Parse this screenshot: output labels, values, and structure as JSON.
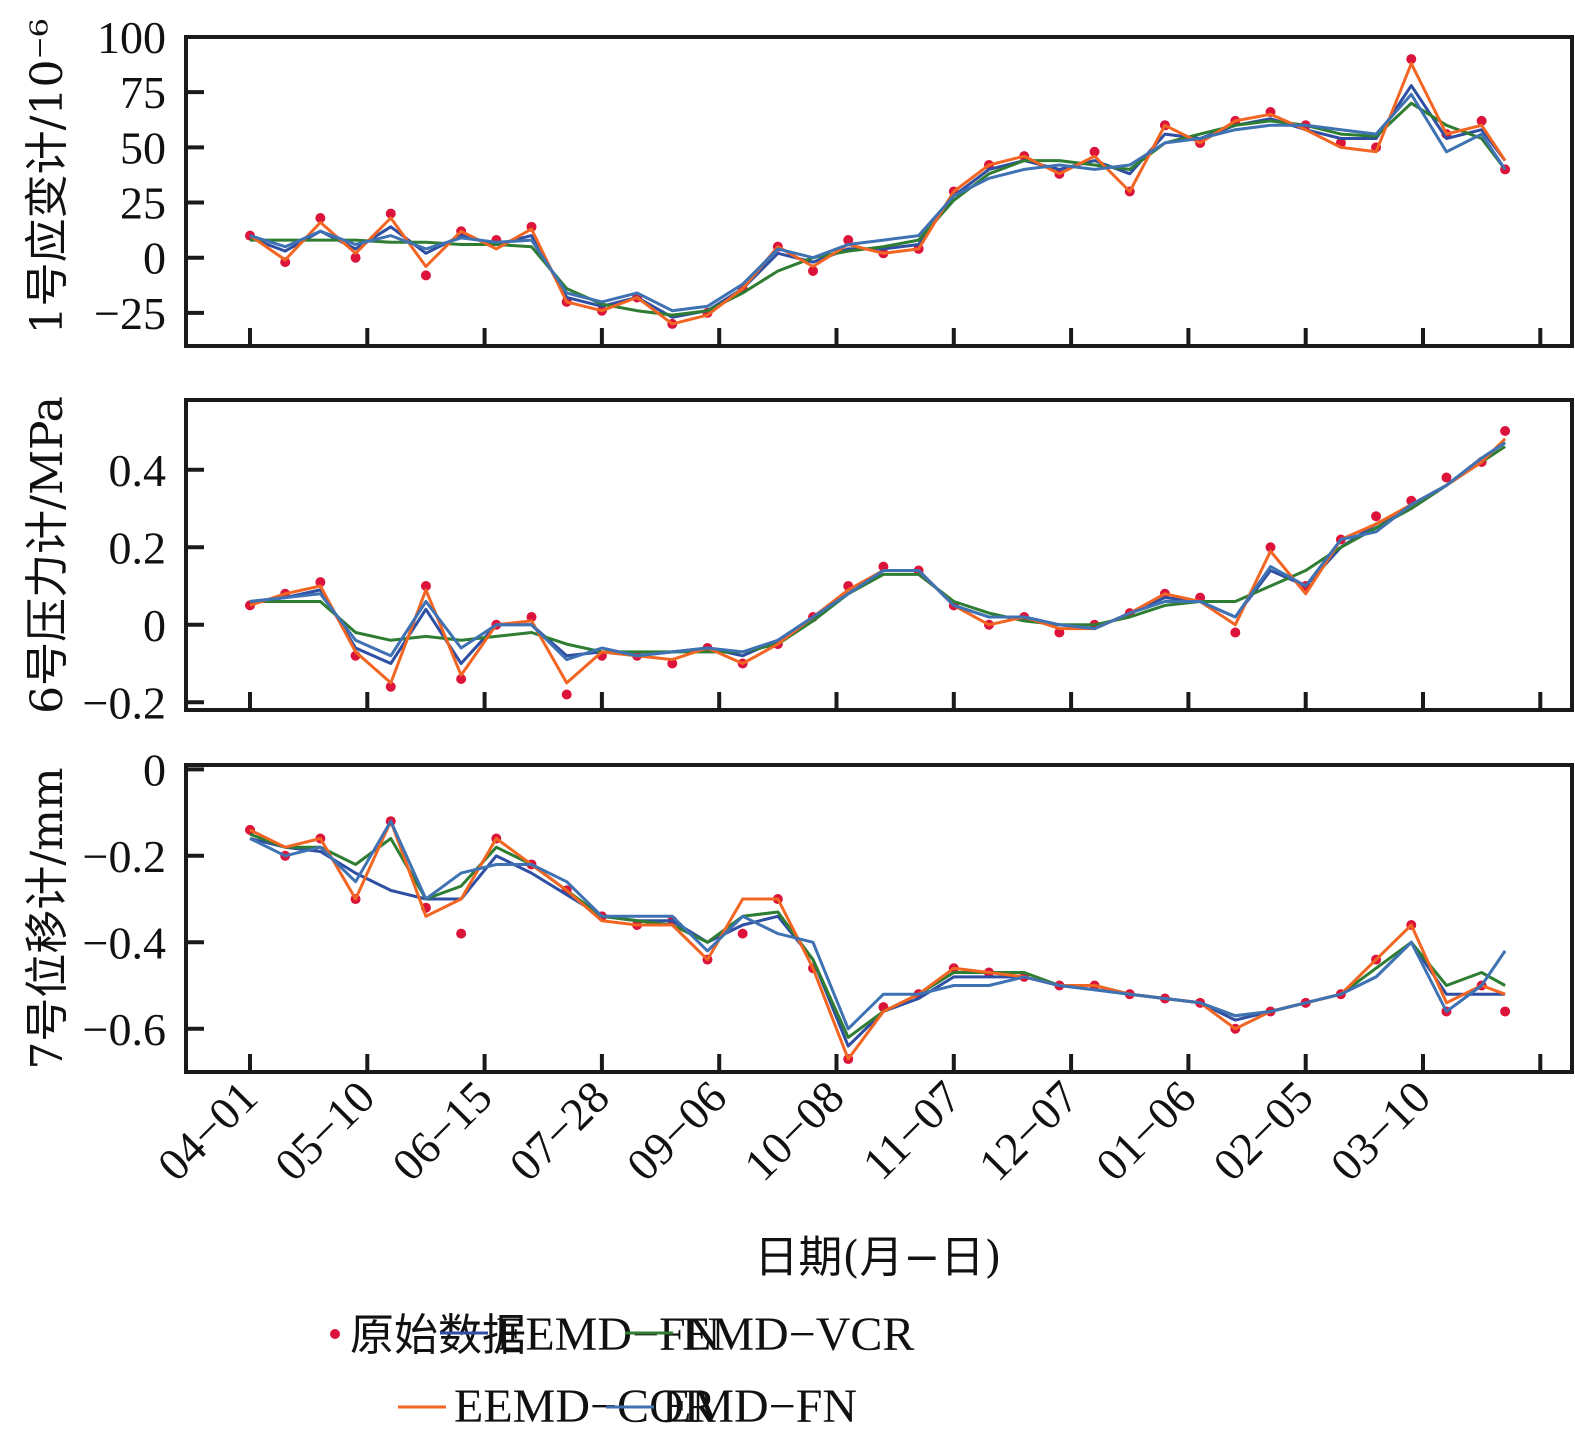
{
  "chart_data": {
    "type": "line",
    "xlabel": "日期(月−日)",
    "x_tick_labels": [
      "04−01",
      "05−10",
      "06−15",
      "07−28",
      "09−06",
      "10−08",
      "11−07",
      "12−07",
      "01−06",
      "02−05",
      "03−10"
    ],
    "x_range_tick_units": [
      -0.55,
      11.3
    ],
    "legend": {
      "placement": "bottom",
      "entries": [
        {
          "name": "原始数据",
          "kind": "marker",
          "color": "#dc143c"
        },
        {
          "name": "EEMD−FN",
          "kind": "line",
          "color": "#2e4fa3"
        },
        {
          "name": "EMD−VCR",
          "kind": "line",
          "color": "#2e7d32"
        },
        {
          "name": "EEMD−COR",
          "kind": "line",
          "color": "#f26522"
        },
        {
          "name": "EMD−FN",
          "kind": "line",
          "color": "#3f72b3"
        }
      ]
    },
    "panels": [
      {
        "ylabel": "1号应变计/10⁻⁶",
        "ylim": [
          -40,
          100
        ],
        "yticks": [
          -25,
          0,
          25,
          50,
          75,
          100
        ],
        "ytick_labels": [
          "−25",
          "0",
          "25",
          "50",
          "75",
          "100"
        ],
        "x": [
          0,
          0.3,
          0.6,
          0.9,
          1.2,
          1.5,
          1.8,
          2.1,
          2.4,
          2.7,
          3.0,
          3.3,
          3.6,
          3.9,
          4.2,
          4.5,
          4.8,
          5.1,
          5.4,
          5.7,
          6.0,
          6.3,
          6.6,
          6.9,
          7.2,
          7.5,
          7.8,
          8.1,
          8.4,
          8.7,
          9.0,
          9.3,
          9.6,
          9.9,
          10.2,
          10.5,
          10.7
        ],
        "raw": [
          10,
          -2,
          18,
          0,
          20,
          -8,
          12,
          8,
          14,
          -20,
          -24,
          -18,
          -30,
          -25,
          -14,
          5,
          -6,
          8,
          2,
          4,
          30,
          42,
          46,
          38,
          48,
          30,
          60,
          52,
          62,
          66,
          60,
          52,
          50,
          90,
          56,
          62,
          40
        ],
        "series": [
          {
            "name": "EEMD−FN",
            "values": [
              9,
              3,
              12,
              4,
              14,
              2,
              10,
              6,
              10,
              -18,
              -22,
              -18,
              -27,
              -24,
              -14,
              2,
              -2,
              4,
              4,
              6,
              28,
              40,
              44,
              40,
              44,
              38,
              56,
              54,
              60,
              63,
              58,
              54,
              54,
              78,
              54,
              58,
              44
            ]
          },
          {
            "name": "EMD−VCR",
            "values": [
              8,
              8,
              8,
              8,
              7,
              7,
              6,
              6,
              5,
              -14,
              -21,
              -24,
              -26,
              -24,
              -16,
              -6,
              0,
              3,
              5,
              8,
              26,
              38,
              44,
              44,
              42,
              40,
              52,
              56,
              60,
              62,
              60,
              56,
              55,
              70,
              60,
              54,
              40
            ]
          },
          {
            "name": "EEMD−COR",
            "values": [
              10,
              -1,
              16,
              2,
              18,
              -4,
              12,
              4,
              13,
              -20,
              -24,
              -18,
              -30,
              -26,
              -14,
              5,
              -4,
              6,
              2,
              4,
              30,
              42,
              46,
              38,
              46,
              30,
              60,
              52,
              62,
              65,
              58,
              50,
              48,
              88,
              56,
              60,
              44
            ]
          },
          {
            "name": "EMD−FN",
            "values": [
              10,
              5,
              12,
              6,
              10,
              4,
              9,
              7,
              8,
              -16,
              -20,
              -16,
              -24,
              -22,
              -12,
              4,
              0,
              6,
              8,
              10,
              28,
              36,
              40,
              42,
              40,
              42,
              52,
              54,
              58,
              60,
              60,
              58,
              56,
              74,
              48,
              56,
              40
            ]
          }
        ]
      },
      {
        "ylabel": "6号压力计/MPa",
        "ylim": [
          -0.22,
          0.58
        ],
        "yticks": [
          -0.2,
          0,
          0.2,
          0.4
        ],
        "ytick_labels": [
          "−0.2",
          "0",
          "0.2",
          "0.4"
        ],
        "x": [
          0,
          0.3,
          0.6,
          0.9,
          1.2,
          1.5,
          1.8,
          2.1,
          2.4,
          2.7,
          3.0,
          3.3,
          3.6,
          3.9,
          4.2,
          4.5,
          4.8,
          5.1,
          5.4,
          5.7,
          6.0,
          6.3,
          6.6,
          6.9,
          7.2,
          7.5,
          7.8,
          8.1,
          8.4,
          8.7,
          9.0,
          9.3,
          9.6,
          9.9,
          10.2,
          10.5,
          10.7
        ],
        "raw": [
          0.05,
          0.08,
          0.11,
          -0.08,
          -0.16,
          0.1,
          -0.14,
          0.0,
          0.02,
          -0.18,
          -0.08,
          -0.08,
          -0.1,
          -0.06,
          -0.1,
          -0.05,
          0.02,
          0.1,
          0.15,
          0.14,
          0.05,
          0.0,
          0.02,
          -0.02,
          0.0,
          0.03,
          0.08,
          0.07,
          -0.02,
          0.2,
          0.1,
          0.22,
          0.28,
          0.32,
          0.38,
          0.42,
          0.5
        ],
        "series": [
          {
            "name": "EEMD−FN",
            "values": [
              0.06,
              0.07,
              0.09,
              -0.06,
              -0.1,
              0.04,
              -0.1,
              0.0,
              0.0,
              -0.08,
              -0.07,
              -0.08,
              -0.07,
              -0.06,
              -0.08,
              -0.04,
              0.02,
              0.08,
              0.14,
              0.14,
              0.05,
              0.02,
              0.02,
              0.0,
              -0.01,
              0.03,
              0.07,
              0.06,
              0.02,
              0.14,
              0.1,
              0.2,
              0.26,
              0.3,
              0.36,
              0.43,
              0.47
            ]
          },
          {
            "name": "EMD−VCR",
            "values": [
              0.06,
              0.06,
              0.06,
              -0.02,
              -0.04,
              -0.03,
              -0.04,
              -0.03,
              -0.02,
              -0.05,
              -0.07,
              -0.07,
              -0.07,
              -0.07,
              -0.07,
              -0.05,
              0.01,
              0.08,
              0.13,
              0.13,
              0.06,
              0.03,
              0.01,
              0.0,
              0.0,
              0.02,
              0.05,
              0.06,
              0.06,
              0.1,
              0.14,
              0.2,
              0.25,
              0.3,
              0.36,
              0.42,
              0.46
            ]
          },
          {
            "name": "EEMD−COR",
            "values": [
              0.05,
              0.08,
              0.1,
              -0.07,
              -0.15,
              0.09,
              -0.13,
              0.0,
              0.01,
              -0.15,
              -0.07,
              -0.08,
              -0.09,
              -0.06,
              -0.1,
              -0.05,
              0.02,
              0.09,
              0.14,
              0.14,
              0.05,
              0.0,
              0.02,
              -0.01,
              -0.01,
              0.03,
              0.08,
              0.06,
              0.0,
              0.19,
              0.08,
              0.22,
              0.26,
              0.31,
              0.36,
              0.42,
              0.48
            ]
          },
          {
            "name": "EMD−FN",
            "values": [
              0.06,
              0.07,
              0.08,
              -0.04,
              -0.08,
              0.06,
              -0.06,
              0.0,
              0.0,
              -0.09,
              -0.06,
              -0.08,
              -0.07,
              -0.06,
              -0.07,
              -0.04,
              0.02,
              0.08,
              0.14,
              0.14,
              0.05,
              0.02,
              0.02,
              0.0,
              -0.01,
              0.03,
              0.06,
              0.06,
              0.02,
              0.15,
              0.1,
              0.22,
              0.24,
              0.31,
              0.36,
              0.43,
              0.47
            ]
          }
        ]
      },
      {
        "ylabel": "7号位移计/mm",
        "ylim": [
          -0.7,
          0.01
        ],
        "yticks": [
          -0.6,
          -0.4,
          -0.2,
          0
        ],
        "ytick_labels": [
          "−0.6",
          "−0.4",
          "−0.2",
          "0"
        ],
        "x": [
          0,
          0.3,
          0.6,
          0.9,
          1.2,
          1.5,
          1.8,
          2.1,
          2.4,
          2.7,
          3.0,
          3.3,
          3.6,
          3.9,
          4.2,
          4.5,
          4.8,
          5.1,
          5.4,
          5.7,
          6.0,
          6.3,
          6.6,
          6.9,
          7.2,
          7.5,
          7.8,
          8.1,
          8.4,
          8.7,
          9.0,
          9.3,
          9.6,
          9.9,
          10.2,
          10.5,
          10.7
        ],
        "raw": [
          -0.14,
          -0.2,
          -0.16,
          -0.3,
          -0.12,
          -0.32,
          -0.38,
          -0.16,
          -0.22,
          -0.28,
          -0.34,
          -0.36,
          -0.35,
          -0.44,
          -0.38,
          -0.3,
          -0.46,
          -0.67,
          -0.55,
          -0.52,
          -0.46,
          -0.47,
          -0.48,
          -0.5,
          -0.5,
          -0.52,
          -0.53,
          -0.54,
          -0.6,
          -0.56,
          -0.54,
          -0.52,
          -0.44,
          -0.36,
          -0.56,
          -0.5,
          -0.56
        ],
        "series": [
          {
            "name": "EEMD−FN",
            "values": [
              -0.16,
              -0.18,
              -0.19,
              -0.24,
              -0.28,
              -0.3,
              -0.3,
              -0.2,
              -0.24,
              -0.29,
              -0.34,
              -0.35,
              -0.35,
              -0.4,
              -0.36,
              -0.34,
              -0.44,
              -0.64,
              -0.56,
              -0.53,
              -0.48,
              -0.48,
              -0.48,
              -0.5,
              -0.51,
              -0.52,
              -0.53,
              -0.54,
              -0.58,
              -0.56,
              -0.54,
              -0.52,
              -0.48,
              -0.4,
              -0.52,
              -0.52,
              -0.52
            ]
          },
          {
            "name": "EMD−VCR",
            "values": [
              -0.15,
              -0.18,
              -0.18,
              -0.22,
              -0.16,
              -0.3,
              -0.27,
              -0.18,
              -0.22,
              -0.28,
              -0.34,
              -0.35,
              -0.36,
              -0.4,
              -0.34,
              -0.33,
              -0.44,
              -0.62,
              -0.56,
              -0.52,
              -0.47,
              -0.47,
              -0.47,
              -0.5,
              -0.5,
              -0.52,
              -0.53,
              -0.54,
              -0.57,
              -0.56,
              -0.54,
              -0.52,
              -0.46,
              -0.4,
              -0.5,
              -0.47,
              -0.5
            ]
          },
          {
            "name": "EEMD−COR",
            "values": [
              -0.14,
              -0.18,
              -0.16,
              -0.3,
              -0.12,
              -0.34,
              -0.3,
              -0.16,
              -0.22,
              -0.28,
              -0.35,
              -0.36,
              -0.36,
              -0.44,
              -0.3,
              -0.3,
              -0.46,
              -0.67,
              -0.56,
              -0.52,
              -0.46,
              -0.47,
              -0.48,
              -0.5,
              -0.5,
              -0.52,
              -0.53,
              -0.54,
              -0.6,
              -0.56,
              -0.54,
              -0.52,
              -0.44,
              -0.36,
              -0.54,
              -0.5,
              -0.52
            ]
          },
          {
            "name": "EMD−FN",
            "values": [
              -0.16,
              -0.2,
              -0.18,
              -0.26,
              -0.12,
              -0.3,
              -0.24,
              -0.22,
              -0.22,
              -0.26,
              -0.34,
              -0.34,
              -0.34,
              -0.42,
              -0.34,
              -0.38,
              -0.4,
              -0.6,
              -0.52,
              -0.52,
              -0.5,
              -0.5,
              -0.48,
              -0.5,
              -0.51,
              -0.52,
              -0.53,
              -0.54,
              -0.57,
              -0.56,
              -0.54,
              -0.52,
              -0.48,
              -0.4,
              -0.56,
              -0.5,
              -0.42
            ]
          }
        ]
      }
    ]
  }
}
